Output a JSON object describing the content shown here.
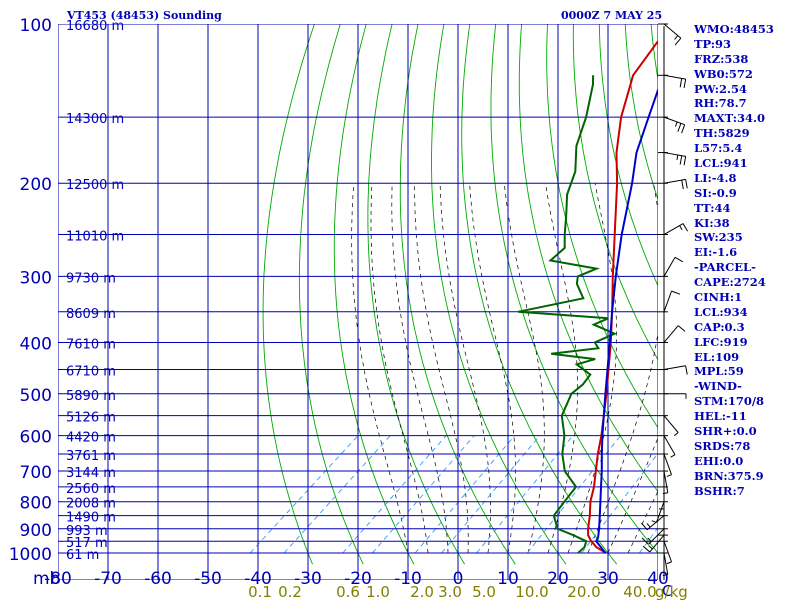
{
  "header": {
    "station_title": "VT453 (48453) Sounding",
    "valid_time": "0000Z  7 MAY 25"
  },
  "indices": [
    "WMO:48453",
    "TP:93",
    "FRZ:538",
    "WB0:572",
    "PW:2.54",
    "RH:78.7",
    "MAXT:34.0",
    "TH:5829",
    "L57:5.4",
    "LCL:941",
    "LI:-4.8",
    "SI:-0.9",
    "TT:44",
    "KI:38",
    "SW:235",
    "EI:-1.6",
    "-PARCEL-",
    "CAPE:2724",
    "CINH:1",
    "LCL:934",
    "CAP:0.3",
    "LFC:919",
    "EL:109",
    "MPL:59",
    "-WIND-",
    "STM:170/8",
    "HEL:-11",
    "SHR+:0.0",
    "SRDS:78",
    "EHI:0.0",
    "BRN:375.9",
    "BSHR:7"
  ],
  "colors": {
    "axes": "#0000b4",
    "dry_adiabat": "#00aa00",
    "moist_adiabat": "#000000",
    "mixing_ratio": "#3399ff",
    "temperature": "#cc0000",
    "dewpoint": "#006400",
    "parcel": "#0000cc",
    "mixing_label": "#808000"
  },
  "chart_data": {
    "type": "line",
    "diagram": "skew-T log-P",
    "title": "VT453 (48453) Sounding",
    "pressure_unit_label": "mb",
    "temperature_unit_label": "C",
    "mixing_ratio_unit_label": "g/kg",
    "ylim": [
      1000,
      100
    ],
    "y_scale": "log",
    "xlim": [
      -80,
      40
    ],
    "grid": true,
    "pressure_ticks": [
      100,
      200,
      300,
      400,
      500,
      600,
      700,
      800,
      900,
      1000
    ],
    "temperature_ticks": [
      -80,
      -70,
      -60,
      -50,
      -40,
      -30,
      -20,
      -10,
      0,
      10,
      20,
      30,
      40
    ],
    "height_labels": [
      {
        "p": 100,
        "label": "16680 m"
      },
      {
        "p": 150,
        "label": "14300 m"
      },
      {
        "p": 200,
        "label": "12500 m"
      },
      {
        "p": 250,
        "label": "11010 m"
      },
      {
        "p": 300,
        "label": "9730 m"
      },
      {
        "p": 350,
        "label": "8609 m"
      },
      {
        "p": 400,
        "label": "7610 m"
      },
      {
        "p": 450,
        "label": "6710 m"
      },
      {
        "p": 500,
        "label": "5890 m"
      },
      {
        "p": 550,
        "label": "5126 m"
      },
      {
        "p": 600,
        "label": "4420 m"
      },
      {
        "p": 650,
        "label": "3761 m"
      },
      {
        "p": 700,
        "label": "3144 m"
      },
      {
        "p": 750,
        "label": "2560 m"
      },
      {
        "p": 800,
        "label": "2008 m"
      },
      {
        "p": 850,
        "label": "1490 m"
      },
      {
        "p": 900,
        "label": "993 m"
      },
      {
        "p": 950,
        "label": "517 m"
      },
      {
        "p": 1000,
        "label": "61 m"
      }
    ],
    "mixing_ratio_lines": [
      {
        "w": 0.1,
        "label": "0.1"
      },
      {
        "w": 0.2,
        "label": "0.2"
      },
      {
        "w": 0.6,
        "label": "0.6"
      },
      {
        "w": 1.0,
        "label": "1.0"
      },
      {
        "w": 2.0,
        "label": "2.0"
      },
      {
        "w": 3.0,
        "label": "3.0"
      },
      {
        "w": 5.0,
        "label": "5.0"
      },
      {
        "w": 10.0,
        "label": "10.0"
      },
      {
        "w": 20.0,
        "label": "20.0"
      },
      {
        "w": 40.0,
        "label": "40.0"
      }
    ],
    "series": [
      {
        "key": "temperature",
        "points": [
          [
            1000,
            29.6
          ],
          [
            975,
            26.4
          ],
          [
            950,
            24.0
          ],
          [
            925,
            22.0
          ],
          [
            900,
            20.6
          ],
          [
            850,
            18.0
          ],
          [
            800,
            15.0
          ],
          [
            750,
            12.4
          ],
          [
            700,
            9.2
          ],
          [
            650,
            5.8
          ],
          [
            600,
            2.4
          ],
          [
            550,
            -1.6
          ],
          [
            500,
            -6.0
          ],
          [
            450,
            -11.0
          ],
          [
            400,
            -16.6
          ],
          [
            350,
            -23.2
          ],
          [
            300,
            -31.0
          ],
          [
            250,
            -40.0
          ],
          [
            200,
            -51.0
          ],
          [
            175,
            -58.0
          ],
          [
            150,
            -65.0
          ],
          [
            125,
            -72.0
          ],
          [
            100,
            -76.0
          ]
        ]
      },
      {
        "key": "dewpoint",
        "points": [
          [
            1000,
            24.0
          ],
          [
            975,
            24.0
          ],
          [
            950,
            23.0
          ],
          [
            925,
            19.0
          ],
          [
            900,
            14.5
          ],
          [
            850,
            10.8
          ],
          [
            800,
            9.8
          ],
          [
            750,
            8.8
          ],
          [
            700,
            3.0
          ],
          [
            650,
            -1.3
          ],
          [
            600,
            -5.0
          ],
          [
            550,
            -10.0
          ],
          [
            500,
            -13.0
          ],
          [
            480,
            -12.8
          ],
          [
            460,
            -13.5
          ],
          [
            440,
            -18.5
          ],
          [
            430,
            -16.0
          ],
          [
            420,
            -26.0
          ],
          [
            410,
            -17.8
          ],
          [
            400,
            -19.8
          ],
          [
            385,
            -17.8
          ],
          [
            370,
            -24.0
          ],
          [
            360,
            -22.5
          ],
          [
            350,
            -42.0
          ],
          [
            330,
            -32.0
          ],
          [
            310,
            -36.5
          ],
          [
            300,
            -38.0
          ],
          [
            290,
            -36.0
          ],
          [
            280,
            -47.0
          ],
          [
            265,
            -47.0
          ],
          [
            250,
            -50.0
          ],
          [
            230,
            -54.0
          ],
          [
            210,
            -58.5
          ],
          [
            190,
            -62.0
          ],
          [
            170,
            -67.5
          ],
          [
            150,
            -72.0
          ],
          [
            130,
            -78.0
          ],
          [
            125,
            -80.0
          ]
        ]
      },
      {
        "key": "parcel",
        "points": [
          [
            1000,
            29.5
          ],
          [
            950,
            25.0
          ],
          [
            934,
            24.5
          ],
          [
            900,
            22.8
          ],
          [
            850,
            20.0
          ],
          [
            800,
            17.0
          ],
          [
            750,
            13.8
          ],
          [
            700,
            10.4
          ],
          [
            650,
            6.6
          ],
          [
            600,
            2.6
          ],
          [
            550,
            -1.6
          ],
          [
            500,
            -6.2
          ],
          [
            450,
            -11.2
          ],
          [
            400,
            -16.8
          ],
          [
            350,
            -23.2
          ],
          [
            300,
            -30.4
          ],
          [
            250,
            -38.6
          ],
          [
            200,
            -48.0
          ],
          [
            175,
            -54.0
          ],
          [
            150,
            -59.5
          ],
          [
            125,
            -66.0
          ],
          [
            109,
            -70.0
          ]
        ]
      }
    ],
    "wind_barbs": [
      {
        "p": 1000,
        "dir": 170,
        "spd": 8
      },
      {
        "p": 950,
        "dir": 160,
        "spd": 5
      },
      {
        "p": 925,
        "dir": 220,
        "spd": 15
      },
      {
        "p": 900,
        "dir": 225,
        "spd": 15
      },
      {
        "p": 850,
        "dir": 230,
        "spd": 15
      },
      {
        "p": 800,
        "dir": 200,
        "spd": 5
      },
      {
        "p": 750,
        "dir": 180,
        "spd": 5
      },
      {
        "p": 700,
        "dir": 170,
        "spd": 5
      },
      {
        "p": 650,
        "dir": 160,
        "spd": 5
      },
      {
        "p": 600,
        "dir": 150,
        "spd": 5
      },
      {
        "p": 550,
        "dir": 140,
        "spd": 5
      },
      {
        "p": 500,
        "dir": 90,
        "spd": 5
      },
      {
        "p": 450,
        "dir": 80,
        "spd": 10
      },
      {
        "p": 400,
        "dir": 40,
        "spd": 10
      },
      {
        "p": 350,
        "dir": 20,
        "spd": 10
      },
      {
        "p": 300,
        "dir": 30,
        "spd": 10
      },
      {
        "p": 250,
        "dir": 60,
        "spd": 15
      },
      {
        "p": 200,
        "dir": 80,
        "spd": 20
      },
      {
        "p": 175,
        "dir": 100,
        "spd": 25
      },
      {
        "p": 150,
        "dir": 110,
        "spd": 25
      },
      {
        "p": 125,
        "dir": 100,
        "spd": 20
      },
      {
        "p": 100,
        "dir": 130,
        "spd": 15
      }
    ]
  }
}
